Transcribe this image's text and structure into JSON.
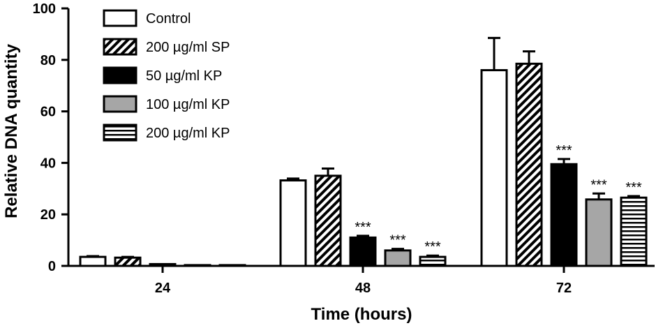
{
  "chart_data": {
    "type": "bar",
    "title": "",
    "xlabel": "Time (hours)",
    "ylabel": "Relative DNA quantity",
    "ylim": [
      0,
      100
    ],
    "yticks": [
      0,
      20,
      40,
      60,
      80,
      100
    ],
    "categories": [
      "24",
      "48",
      "72"
    ],
    "legend_position": "top-left",
    "grid": false,
    "series": [
      {
        "name": "Control",
        "fill": "white",
        "values": [
          3.5,
          33.2,
          76.0
        ],
        "errors": [
          0.3,
          0.7,
          12.5
        ],
        "sig": [
          "",
          "",
          ""
        ]
      },
      {
        "name": "200 µg/ml SP",
        "fill": "diagonal-hatch",
        "values": [
          3.2,
          35.0,
          78.5
        ],
        "errors": [
          0.3,
          2.8,
          4.8
        ],
        "sig": [
          "",
          "",
          ""
        ]
      },
      {
        "name": "50 µg/ml KP",
        "fill": "#000000",
        "values": [
          0.7,
          11.0,
          39.5
        ],
        "errors": [
          0.2,
          0.7,
          2.0
        ],
        "sig": [
          "",
          "***",
          "***"
        ]
      },
      {
        "name": "100 µg/ml KP",
        "fill": "#a6a6a6",
        "values": [
          0.3,
          6.0,
          25.8
        ],
        "errors": [
          0.1,
          0.6,
          2.3
        ],
        "sig": [
          "",
          "***",
          "***"
        ]
      },
      {
        "name": "200 µg/ml KP",
        "fill": "horizontal-stripes",
        "values": [
          0.3,
          3.5,
          26.5
        ],
        "errors": [
          0.1,
          0.5,
          0.6
        ],
        "sig": [
          "",
          "***",
          "***"
        ]
      }
    ]
  }
}
